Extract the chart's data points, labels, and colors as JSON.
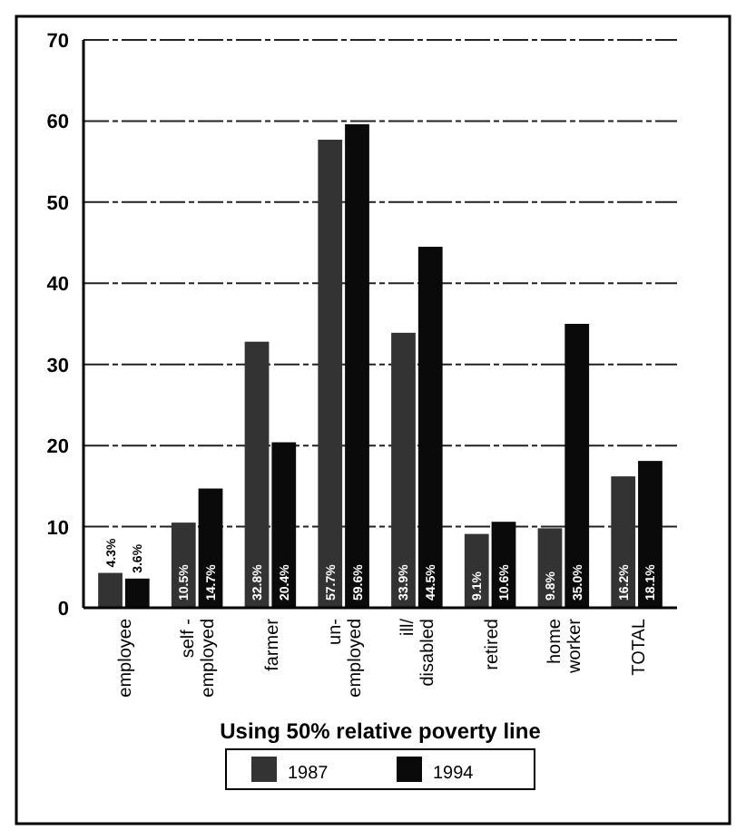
{
  "chart_data": {
    "type": "bar",
    "xlabel": "Using 50% relative poverty line",
    "categories": [
      "employee",
      "self -\nemployed",
      "farmer",
      "un-\nemployed",
      "ill/\ndisabled",
      "retired",
      "home\nworker",
      "TOTAL"
    ],
    "series": [
      {
        "name": "1987",
        "color": "#333333",
        "values": [
          4.3,
          10.5,
          32.8,
          57.7,
          33.9,
          9.1,
          9.8,
          16.2
        ],
        "value_labels": [
          "4.3%",
          "10.5%",
          "32.8%",
          "57.7%",
          "33.9%",
          "9.1%",
          "9.8%",
          "16.2%"
        ]
      },
      {
        "name": "1994",
        "color": "#0a0a0a",
        "values": [
          3.6,
          14.7,
          20.4,
          59.6,
          44.5,
          10.6,
          35.0,
          18.1
        ],
        "value_labels": [
          "3.6%",
          "14.7%",
          "20.4%",
          "59.6%",
          "44.5%",
          "10.6%",
          "35.0%",
          "18.1%"
        ]
      }
    ],
    "ylim": [
      0,
      70
    ],
    "yticks": [
      0,
      10,
      20,
      30,
      40,
      50,
      60,
      70
    ],
    "grid": "y",
    "legend": "bottom"
  }
}
